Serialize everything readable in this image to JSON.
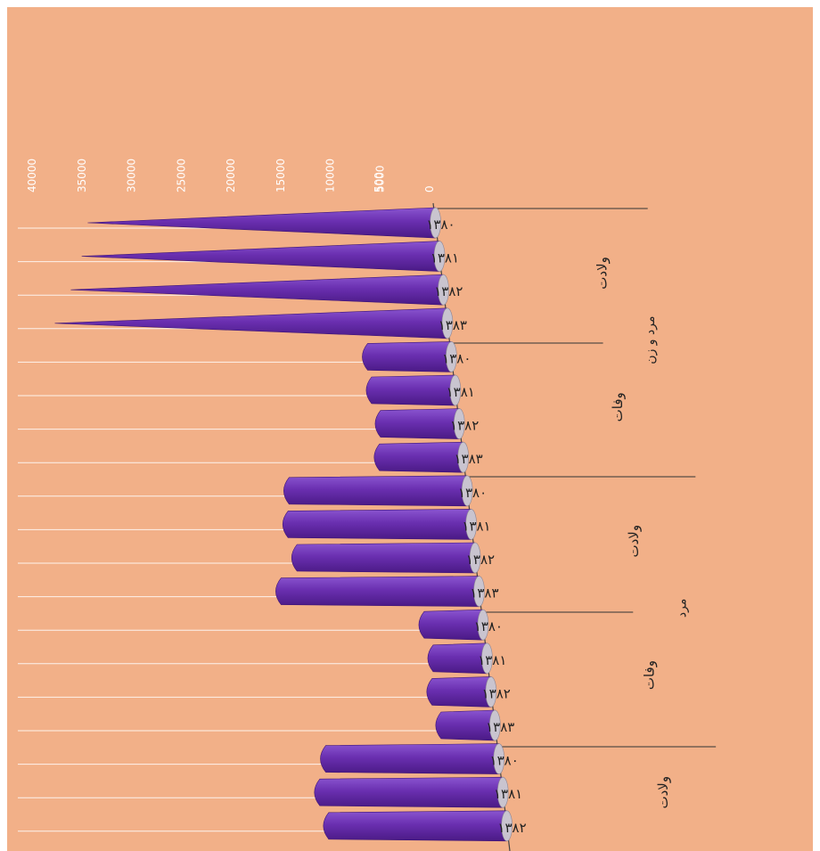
{
  "chart_data": {
    "type": "bar",
    "orientation": "horizontal-rotated",
    "title": "",
    "xlabel": "",
    "ylabel": "",
    "ylim": [
      0,
      40000
    ],
    "ticks": [
      "0",
      "500",
      "5000",
      "10000",
      "15000",
      "20000",
      "25000",
      "30000",
      "35000",
      "40000"
    ],
    "grid": true,
    "legend": "none",
    "bar_color": "#6a2fb0",
    "background_color": "#f2b088",
    "categories": [
      "۱۳۸۰",
      "۱۳۸۱",
      "۱۳۸۲",
      "۱۳۸۳",
      "۱۳۸۰",
      "۱۳۸۱",
      "۱۳۸۲",
      "۱۳۸۳",
      "۱۳۸۰",
      "۱۳۸۱",
      "۱۳۸۲",
      "۱۳۸۳",
      "۱۳۸۰",
      "۱۳۸۱",
      "۱۳۸۲",
      "۱۳۸۳",
      "۱۳۸۰",
      "۱۳۸۱",
      "۱۳۸۲"
    ],
    "values": [
      35000,
      36000,
      37500,
      39500,
      9500,
      9500,
      9000,
      9500,
      19000,
      19500,
      19000,
      21000,
      7000,
      6500,
      7000,
      6500,
      18500,
      19500,
      19000
    ],
    "group_labels": [
      {
        "label": "ولادت",
        "start": 0,
        "end": 3
      },
      {
        "label": "وفات",
        "start": 4,
        "end": 7
      },
      {
        "label": "ولادت",
        "start": 8,
        "end": 11
      },
      {
        "label": "وفات",
        "start": 12,
        "end": 15
      },
      {
        "label": "ولادت",
        "start": 16,
        "end": 18
      }
    ],
    "super_group_labels": [
      {
        "label": "مرد و زن",
        "start": 0,
        "end": 7
      },
      {
        "label": "مرد",
        "start": 8,
        "end": 15
      }
    ]
  }
}
